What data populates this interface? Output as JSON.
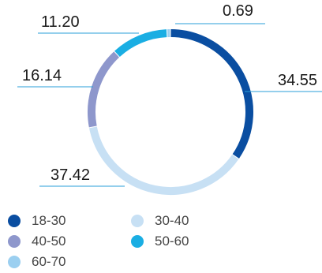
{
  "chart_data": {
    "type": "pie",
    "categories": [
      "18-30",
      "30-40",
      "40-50",
      "50-60",
      "60-70"
    ],
    "values": [
      34.55,
      37.42,
      16.14,
      11.2,
      0.69
    ],
    "value_labels": [
      "34.55",
      "37.42",
      "16.14",
      "11.20",
      "0.69"
    ],
    "colors": [
      "#0a4ea1",
      "#c7e0f4",
      "#8e97cc",
      "#1aaee3",
      "#9bcff0"
    ],
    "donut": true,
    "legend_position": "bottom-left"
  },
  "legend": [
    {
      "label": "18-30",
      "color": "#0a4ea1"
    },
    {
      "label": "30-40",
      "color": "#c7e0f4"
    },
    {
      "label": "40-50",
      "color": "#8e97cc"
    },
    {
      "label": "50-60",
      "color": "#1aaee3"
    },
    {
      "label": "60-70",
      "color": "#9bcff0"
    }
  ]
}
